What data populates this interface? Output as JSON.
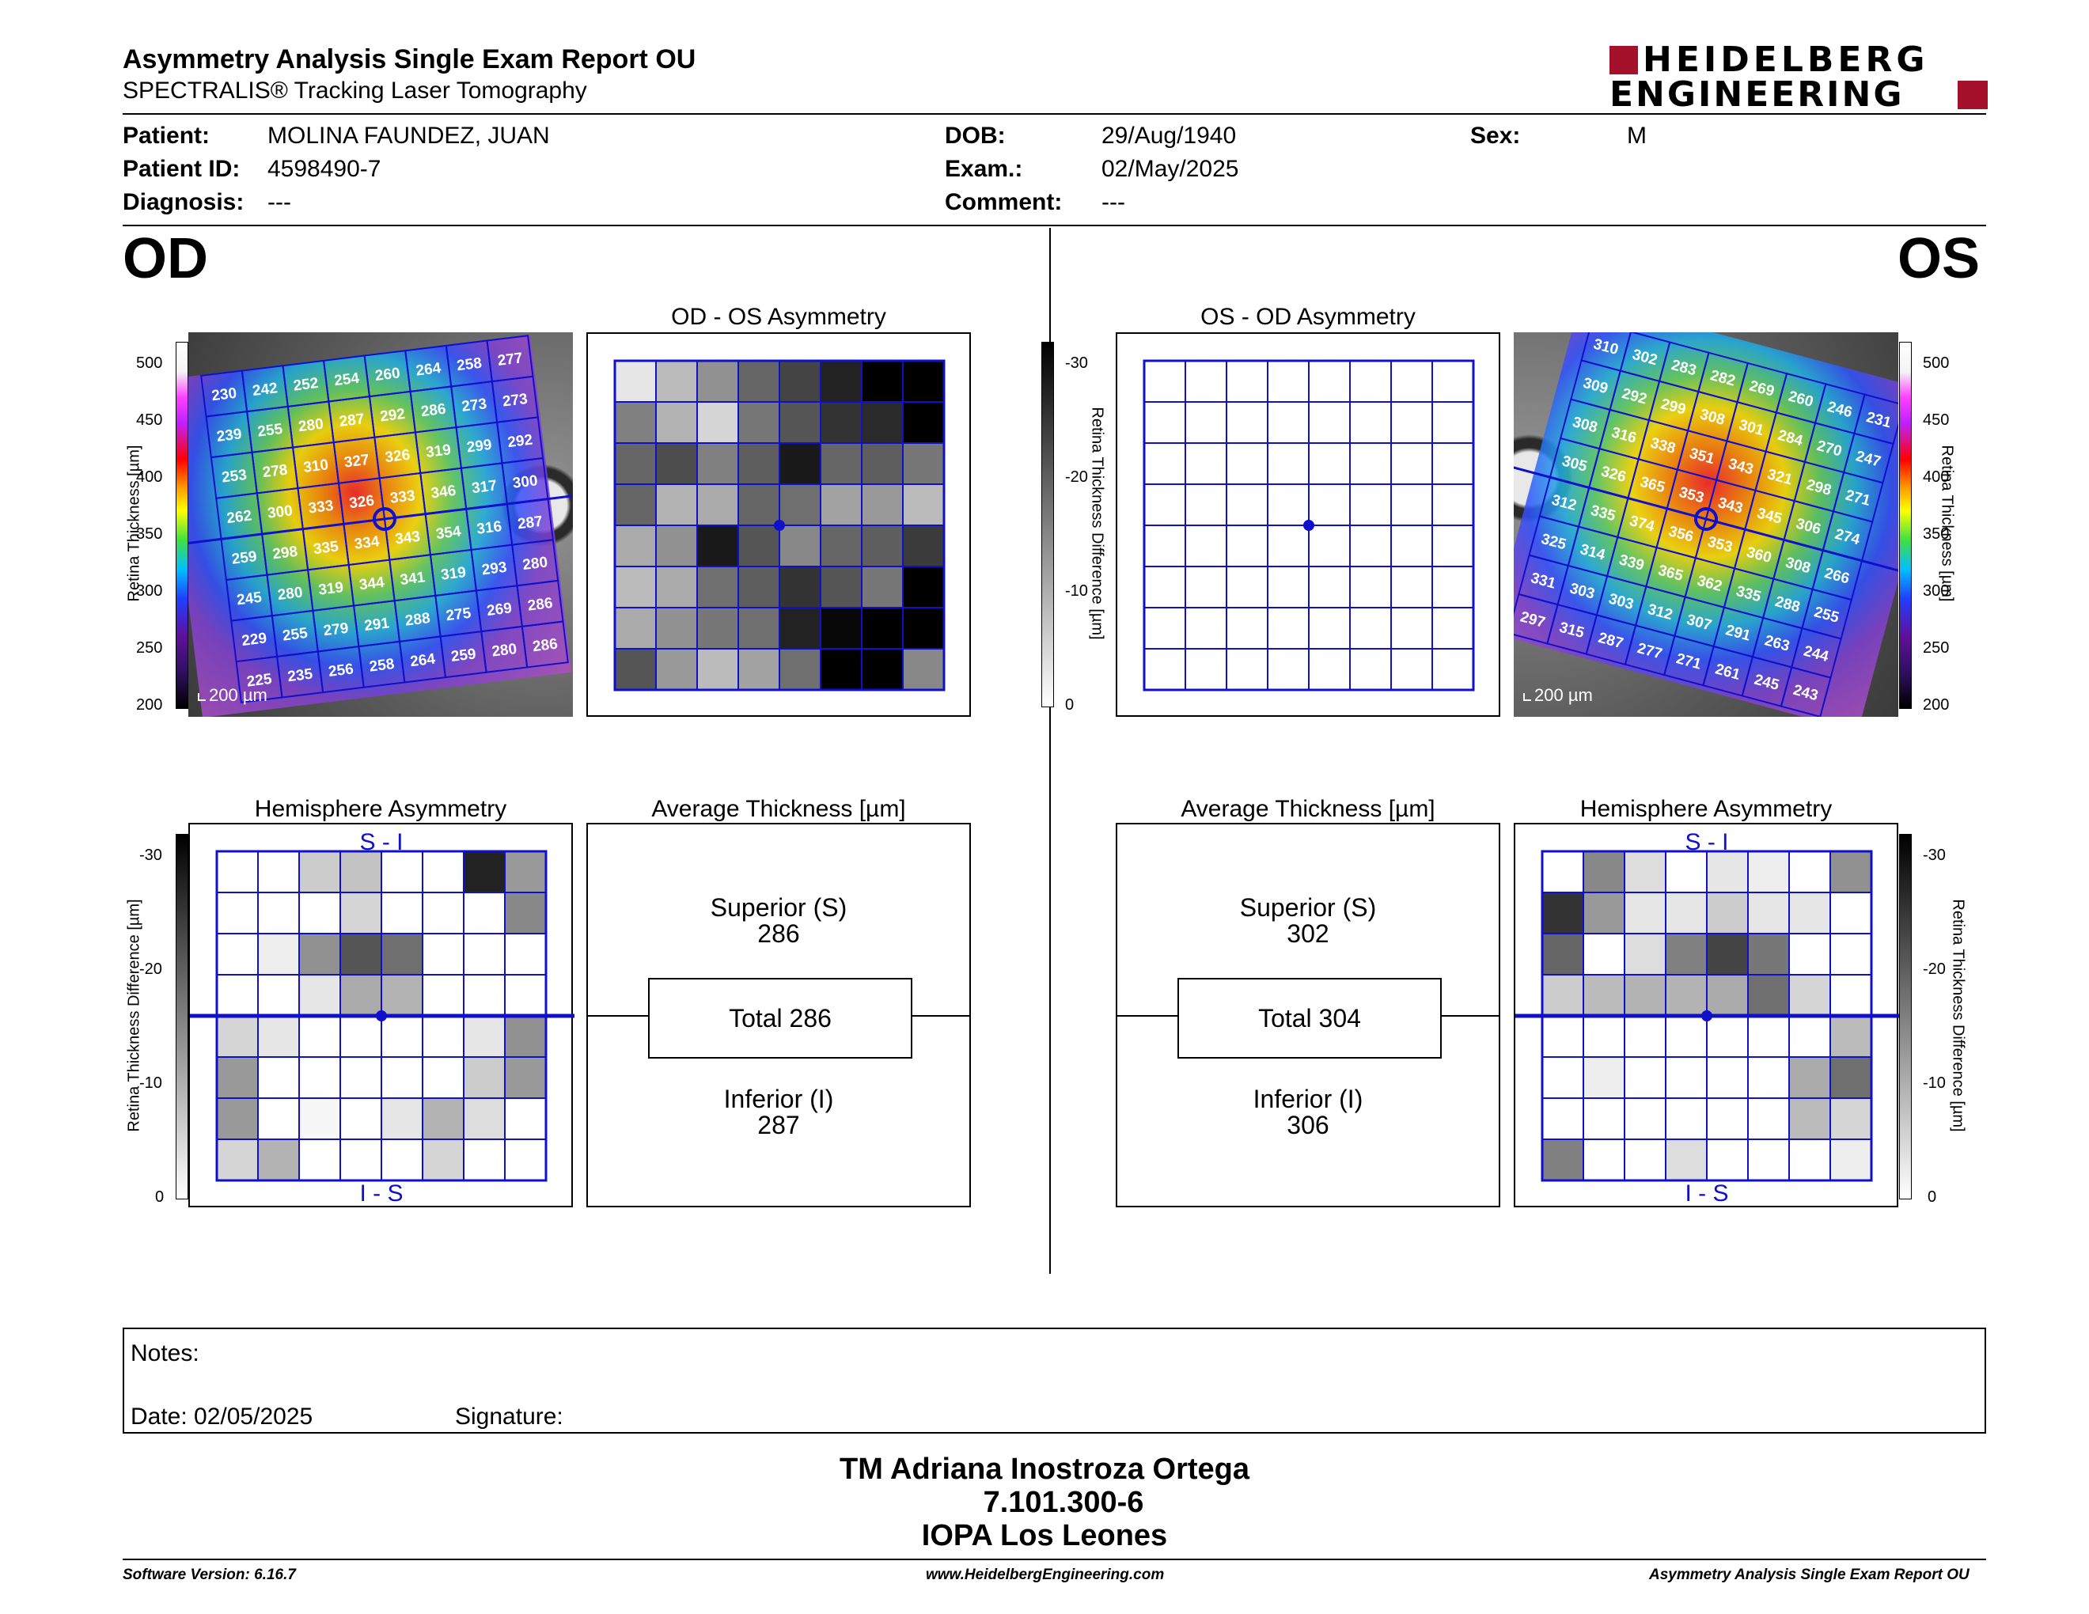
{
  "header": {
    "title": "Asymmetry Analysis Single Exam Report OU",
    "subtitle": "SPECTRALIS® Tracking Laser Tomography",
    "logo_line1": "HEIDELBERG",
    "logo_line2": "ENGINEERING"
  },
  "patient": {
    "patient_label": "Patient:",
    "patient_value": "MOLINA FAUNDEZ, JUAN",
    "id_label": "Patient ID:",
    "id_value": "4598490-7",
    "diagnosis_label": "Diagnosis:",
    "diagnosis_value": "---",
    "dob_label": "DOB:",
    "dob_value": "29/Aug/1940",
    "exam_label": "Exam.:",
    "exam_value": "02/May/2025",
    "comment_label": "Comment:",
    "comment_value": "---",
    "sex_label": "Sex:",
    "sex_value": "M"
  },
  "eyes": {
    "od": "OD",
    "os": "OS"
  },
  "colors": {
    "grid_blue": "#1010cc",
    "brand_red": "#a5102a"
  },
  "thickness_scale": {
    "label": "Retina Thickness [µm]",
    "ticks": [
      "500",
      "450",
      "400",
      "350",
      "300",
      "250",
      "200"
    ]
  },
  "difference_scale": {
    "label": "Retina Thickness Difference [µm]",
    "ticks": [
      "-30",
      "-20",
      "-10",
      "0"
    ]
  },
  "od_fundus": {
    "scale_bar": "200 µm",
    "values": [
      [
        230,
        242,
        252,
        254,
        260,
        264,
        258,
        277
      ],
      [
        239,
        255,
        280,
        287,
        292,
        286,
        273,
        273
      ],
      [
        253,
        278,
        310,
        327,
        326,
        319,
        299,
        292
      ],
      [
        262,
        300,
        333,
        326,
        333,
        346,
        317,
        300
      ],
      [
        259,
        298,
        335,
        334,
        343,
        354,
        316,
        287
      ],
      [
        245,
        280,
        319,
        344,
        341,
        319,
        293,
        280
      ],
      [
        229,
        255,
        279,
        291,
        288,
        275,
        269,
        286
      ],
      [
        225,
        235,
        256,
        258,
        264,
        259,
        280,
        286
      ]
    ]
  },
  "os_fundus": {
    "scale_bar": "200 µm",
    "values": [
      [
        310,
        302,
        283,
        282,
        269,
        260,
        246,
        231
      ],
      [
        309,
        292,
        299,
        308,
        301,
        284,
        270,
        247
      ],
      [
        308,
        316,
        338,
        351,
        343,
        321,
        298,
        271
      ],
      [
        305,
        326,
        365,
        353,
        343,
        345,
        306,
        274
      ],
      [
        312,
        335,
        374,
        356,
        353,
        360,
        308,
        266
      ],
      [
        325,
        314,
        339,
        365,
        362,
        335,
        288,
        255
      ],
      [
        331,
        303,
        303,
        312,
        307,
        291,
        263,
        244
      ],
      [
        297,
        315,
        287,
        277,
        271,
        261,
        245,
        243
      ]
    ]
  },
  "od_os_asymmetry": {
    "title": "OD - OS Asymmetry",
    "values": [
      [
        -3,
        -8,
        -13,
        -18,
        -22,
        -26,
        -30,
        -30
      ],
      [
        -15,
        -9,
        -5,
        -16,
        -20,
        -24,
        -25,
        -30
      ],
      [
        -18,
        -21,
        -15,
        -19,
        -27,
        -18,
        -19,
        -16
      ],
      [
        -18,
        -9,
        -10,
        -18,
        -17,
        -11,
        -12,
        -8
      ],
      [
        -10,
        -13,
        -27,
        -20,
        -14,
        -18,
        -19,
        -23
      ],
      [
        -8,
        -10,
        -17,
        -19,
        -24,
        -20,
        -16,
        -30
      ],
      [
        -10,
        -13,
        -16,
        -17,
        -26,
        -29,
        -30,
        -30
      ],
      [
        -20,
        -12,
        -8,
        -11,
        -17,
        -30,
        -30,
        -14
      ]
    ]
  },
  "os_od_asymmetry": {
    "title": "OS - OD Asymmetry",
    "values": [
      [
        0,
        0,
        0,
        0,
        0,
        0,
        0,
        0
      ],
      [
        0,
        0,
        0,
        0,
        0,
        0,
        0,
        0
      ],
      [
        0,
        0,
        0,
        0,
        0,
        0,
        0,
        0
      ],
      [
        0,
        0,
        0,
        0,
        0,
        0,
        0,
        0
      ],
      [
        0,
        0,
        0,
        0,
        0,
        0,
        0,
        0
      ],
      [
        0,
        0,
        0,
        0,
        0,
        0,
        0,
        0
      ],
      [
        0,
        0,
        0,
        0,
        0,
        0,
        0,
        0
      ],
      [
        0,
        0,
        0,
        0,
        0,
        0,
        0,
        0
      ]
    ]
  },
  "od_hemisphere": {
    "title": "Hemisphere Asymmetry",
    "top_label": "S - I",
    "bottom_label": "I - S",
    "values": [
      [
        0,
        0,
        -6,
        -7,
        0,
        0,
        -26,
        -12
      ],
      [
        0,
        0,
        0,
        -5,
        0,
        0,
        0,
        -14
      ],
      [
        0,
        -2,
        -13,
        -20,
        -17,
        0,
        0,
        0
      ],
      [
        0,
        0,
        -3,
        -10,
        -9,
        0,
        0,
        0
      ],
      [
        -5,
        -3,
        0,
        0,
        0,
        0,
        -3,
        -13
      ],
      [
        -12,
        0,
        0,
        0,
        0,
        0,
        -6,
        -12
      ],
      [
        -12,
        0,
        -1,
        0,
        -3,
        -9,
        -4,
        0
      ],
      [
        -5,
        -9,
        0,
        0,
        0,
        -5,
        0,
        0
      ]
    ]
  },
  "os_hemisphere": {
    "title": "Hemisphere Asymmetry",
    "top_label": "S - I",
    "bottom_label": "I - S",
    "values": [
      [
        0,
        -14,
        -4,
        0,
        -3,
        -2,
        0,
        -13
      ],
      [
        -24,
        -12,
        -3,
        -3,
        -6,
        -3,
        -3,
        0
      ],
      [
        -18,
        0,
        -4,
        -15,
        -22,
        -16,
        0,
        0
      ],
      [
        -6,
        -8,
        -9,
        -9,
        -10,
        -17,
        -5,
        0
      ],
      [
        0,
        0,
        0,
        0,
        0,
        0,
        0,
        -8
      ],
      [
        0,
        -2,
        0,
        0,
        0,
        0,
        -10,
        -17
      ],
      [
        0,
        0,
        0,
        0,
        0,
        0,
        -8,
        -5
      ],
      [
        -15,
        0,
        0,
        -4,
        0,
        0,
        0,
        -2
      ]
    ]
  },
  "od_average": {
    "title": "Average Thickness [µm]",
    "superior_label": "Superior (S)",
    "superior_value": "286",
    "total_label": "Total 286",
    "inferior_label": "Inferior (I)",
    "inferior_value": "287"
  },
  "os_average": {
    "title": "Average Thickness [µm]",
    "superior_label": "Superior (S)",
    "superior_value": "302",
    "total_label": "Total 304",
    "inferior_label": "Inferior (I)",
    "inferior_value": "306"
  },
  "notes": {
    "notes_label": "Notes:",
    "date_label": "Date: 02/05/2025",
    "signature_label": "Signature:"
  },
  "signature": {
    "name": "TM Adriana Inostroza Ortega",
    "id": "7.101.300-6",
    "place": "IOPA Los Leones"
  },
  "footer": {
    "software": "Software Version: 6.16.7",
    "website": "www.HeidelbergEngineering.com",
    "report": "Asymmetry Analysis Single Exam Report OU"
  }
}
